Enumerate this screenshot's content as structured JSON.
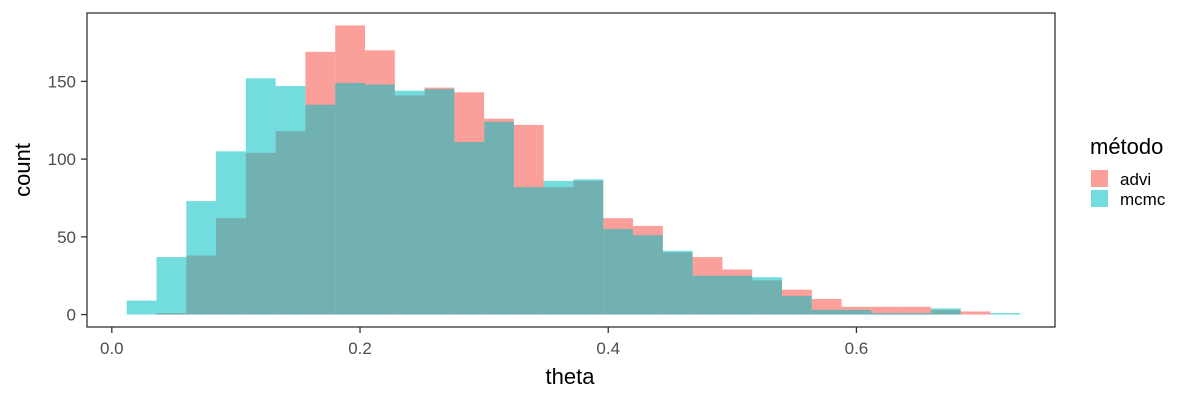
{
  "chart_data": {
    "type": "bar",
    "subtype": "overlaid-histogram",
    "xlabel": "theta",
    "ylabel": "count",
    "xlim": [
      -0.02,
      0.76
    ],
    "ylim": [
      -8,
      194
    ],
    "xticks": [
      0.0,
      0.2,
      0.4,
      0.6
    ],
    "xtick_labels": [
      "0.0",
      "0.2",
      "0.4",
      "0.6"
    ],
    "yticks": [
      0,
      50,
      100,
      150
    ],
    "ytick_labels": [
      "0",
      "50",
      "100",
      "150"
    ],
    "bin_width": 0.024,
    "bin_starts": [
      0.012,
      0.036,
      0.06,
      0.084,
      0.108,
      0.132,
      0.156,
      0.18,
      0.204,
      0.228,
      0.252,
      0.276,
      0.3,
      0.324,
      0.348,
      0.372,
      0.396,
      0.42,
      0.444,
      0.468,
      0.492,
      0.516,
      0.54,
      0.564,
      0.588,
      0.612,
      0.636,
      0.66,
      0.684,
      0.708
    ],
    "grid": false,
    "legend": {
      "title": "método",
      "position": "right"
    },
    "series": [
      {
        "name": "advi",
        "color": "#F8766D",
        "opacity": 0.7,
        "values": [
          0,
          1,
          38,
          62,
          104,
          118,
          169,
          186,
          170,
          141,
          146,
          143,
          126,
          122,
          82,
          86,
          62,
          57,
          40,
          37,
          29,
          22,
          16,
          10,
          5,
          5,
          5,
          3,
          2,
          0
        ]
      },
      {
        "name": "mcmc",
        "color": "#00BFC4",
        "opacity": 0.55,
        "values": [
          9,
          37,
          73,
          105,
          152,
          147,
          135,
          149,
          148,
          144,
          145,
          111,
          124,
          82,
          86,
          87,
          55,
          51,
          41,
          25,
          25,
          24,
          12,
          3,
          3,
          1,
          1,
          4,
          0,
          1
        ]
      }
    ]
  }
}
